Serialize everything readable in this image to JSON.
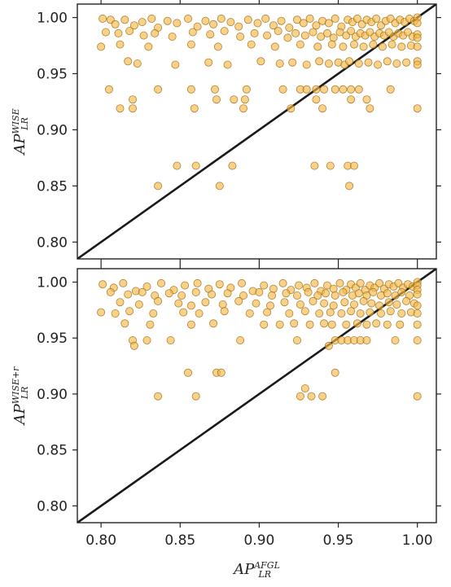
{
  "chart_data": [
    {
      "type": "scatter",
      "xlabel": {
        "base": "AP",
        "sup": "AFGL",
        "sub": "LR"
      },
      "ylabel": {
        "base": "AP",
        "sup": "WISE",
        "sub": "LR"
      },
      "xlim": [
        0.785,
        1.012
      ],
      "ylim": [
        0.785,
        1.012
      ],
      "xticks": [
        "0.80",
        "0.85",
        "0.90",
        "0.95",
        "1.00"
      ],
      "yticks": [
        "0.80",
        "0.85",
        "0.90",
        "0.95",
        "1.00"
      ],
      "reference_line": "y = x",
      "grid": false,
      "points": [
        [
          0.801,
          0.999
        ],
        [
          0.806,
          0.998
        ],
        [
          0.809,
          0.994
        ],
        [
          0.815,
          0.998
        ],
        [
          0.821,
          0.993
        ],
        [
          0.826,
          0.996
        ],
        [
          0.832,
          0.999
        ],
        [
          0.836,
          0.991
        ],
        [
          0.842,
          0.997
        ],
        [
          0.848,
          0.995
        ],
        [
          0.855,
          0.999
        ],
        [
          0.861,
          0.992
        ],
        [
          0.866,
          0.997
        ],
        [
          0.871,
          0.994
        ],
        [
          0.876,
          0.999
        ],
        [
          0.882,
          0.996
        ],
        [
          0.887,
          0.992
        ],
        [
          0.893,
          0.998
        ],
        [
          0.899,
          0.995
        ],
        [
          0.904,
          0.999
        ],
        [
          0.909,
          0.993
        ],
        [
          0.914,
          0.997
        ],
        [
          0.919,
          0.991
        ],
        [
          0.924,
          0.998
        ],
        [
          0.928,
          0.995
        ],
        [
          0.932,
          0.999
        ],
        [
          0.936,
          0.993
        ],
        [
          0.94,
          0.997
        ],
        [
          0.944,
          0.995
        ],
        [
          0.948,
          0.999
        ],
        [
          0.952,
          0.992
        ],
        [
          0.956,
          0.998
        ],
        [
          0.959,
          0.996
        ],
        [
          0.962,
          0.999
        ],
        [
          0.965,
          0.994
        ],
        [
          0.968,
          0.998
        ],
        [
          0.971,
          0.996
        ],
        [
          0.974,
          0.999
        ],
        [
          0.977,
          0.993
        ],
        [
          0.98,
          0.997
        ],
        [
          0.983,
          0.999
        ],
        [
          0.986,
          0.995
        ],
        [
          0.989,
          0.998
        ],
        [
          0.992,
          0.996
        ],
        [
          0.995,
          0.999
        ],
        [
          0.998,
          0.997
        ],
        [
          1.0,
          1.0
        ],
        [
          1.0,
          0.995
        ],
        [
          0.803,
          0.987
        ],
        [
          0.811,
          0.986
        ],
        [
          0.818,
          0.988
        ],
        [
          0.827,
          0.984
        ],
        [
          0.834,
          0.986
        ],
        [
          0.845,
          0.983
        ],
        [
          0.858,
          0.987
        ],
        [
          0.869,
          0.985
        ],
        [
          0.878,
          0.988
        ],
        [
          0.888,
          0.983
        ],
        [
          0.897,
          0.986
        ],
        [
          0.905,
          0.984
        ],
        [
          0.912,
          0.988
        ],
        [
          0.918,
          0.982
        ],
        [
          0.923,
          0.986
        ],
        [
          0.929,
          0.984
        ],
        [
          0.934,
          0.987
        ],
        [
          0.939,
          0.983
        ],
        [
          0.943,
          0.986
        ],
        [
          0.947,
          0.982
        ],
        [
          0.951,
          0.987
        ],
        [
          0.955,
          0.984
        ],
        [
          0.958,
          0.988
        ],
        [
          0.961,
          0.983
        ],
        [
          0.964,
          0.986
        ],
        [
          0.967,
          0.984
        ],
        [
          0.97,
          0.987
        ],
        [
          0.973,
          0.983
        ],
        [
          0.976,
          0.986
        ],
        [
          0.979,
          0.984
        ],
        [
          0.982,
          0.987
        ],
        [
          0.985,
          0.983
        ],
        [
          0.988,
          0.986
        ],
        [
          0.991,
          0.984
        ],
        [
          0.994,
          0.987
        ],
        [
          0.997,
          0.983
        ],
        [
          1.0,
          0.985
        ],
        [
          1.0,
          0.982
        ],
        [
          0.8,
          0.974
        ],
        [
          0.812,
          0.976
        ],
        [
          0.83,
          0.974
        ],
        [
          0.857,
          0.976
        ],
        [
          0.874,
          0.974
        ],
        [
          0.895,
          0.976
        ],
        [
          0.91,
          0.974
        ],
        [
          0.926,
          0.976
        ],
        [
          0.937,
          0.974
        ],
        [
          0.946,
          0.976
        ],
        [
          0.953,
          0.974
        ],
        [
          0.96,
          0.976
        ],
        [
          0.966,
          0.974
        ],
        [
          0.972,
          0.976
        ],
        [
          0.978,
          0.974
        ],
        [
          0.984,
          0.976
        ],
        [
          0.99,
          0.974
        ],
        [
          0.996,
          0.975
        ],
        [
          1.0,
          0.974
        ],
        [
          0.817,
          0.961
        ],
        [
          0.823,
          0.959
        ],
        [
          0.847,
          0.958
        ],
        [
          0.868,
          0.96
        ],
        [
          0.88,
          0.958
        ],
        [
          0.901,
          0.961
        ],
        [
          0.913,
          0.959
        ],
        [
          0.921,
          0.96
        ],
        [
          0.93,
          0.958
        ],
        [
          0.938,
          0.961
        ],
        [
          0.944,
          0.959
        ],
        [
          0.95,
          0.96
        ],
        [
          0.954,
          0.958
        ],
        [
          0.957,
          0.961
        ],
        [
          0.963,
          0.959
        ],
        [
          0.969,
          0.96
        ],
        [
          0.975,
          0.958
        ],
        [
          0.981,
          0.961
        ],
        [
          0.987,
          0.959
        ],
        [
          0.993,
          0.96
        ],
        [
          1.0,
          0.961
        ],
        [
          1.0,
          0.958
        ],
        [
          0.805,
          0.936
        ],
        [
          0.836,
          0.936
        ],
        [
          0.857,
          0.936
        ],
        [
          0.872,
          0.936
        ],
        [
          0.892,
          0.936
        ],
        [
          0.915,
          0.936
        ],
        [
          0.926,
          0.936
        ],
        [
          0.93,
          0.936
        ],
        [
          0.936,
          0.936
        ],
        [
          0.941,
          0.936
        ],
        [
          0.948,
          0.936
        ],
        [
          0.953,
          0.936
        ],
        [
          0.958,
          0.936
        ],
        [
          0.963,
          0.936
        ],
        [
          0.983,
          0.936
        ],
        [
          0.812,
          0.919
        ],
        [
          0.82,
          0.919
        ],
        [
          0.859,
          0.919
        ],
        [
          0.89,
          0.919
        ],
        [
          0.92,
          0.919
        ],
        [
          0.94,
          0.919
        ],
        [
          0.97,
          0.919
        ],
        [
          1.0,
          0.919
        ],
        [
          0.82,
          0.927
        ],
        [
          0.873,
          0.927
        ],
        [
          0.884,
          0.927
        ],
        [
          0.891,
          0.927
        ],
        [
          0.936,
          0.927
        ],
        [
          0.958,
          0.927
        ],
        [
          0.968,
          0.927
        ],
        [
          0.848,
          0.868
        ],
        [
          0.86,
          0.868
        ],
        [
          0.883,
          0.868
        ],
        [
          0.935,
          0.868
        ],
        [
          0.945,
          0.868
        ],
        [
          0.956,
          0.868
        ],
        [
          0.96,
          0.868
        ],
        [
          0.836,
          0.85
        ],
        [
          0.875,
          0.85
        ],
        [
          0.957,
          0.85
        ]
      ]
    },
    {
      "type": "scatter",
      "xlabel": {
        "base": "AP",
        "sup": "AFGL",
        "sub": "LR"
      },
      "ylabel": {
        "base": "AP",
        "sup": "WISE+r",
        "sub": "LR"
      },
      "xlim": [
        0.785,
        1.012
      ],
      "ylim": [
        0.785,
        1.012
      ],
      "xticks": [
        "0.80",
        "0.85",
        "0.90",
        "0.95",
        "1.00"
      ],
      "yticks": [
        "0.80",
        "0.85",
        "0.90",
        "0.95",
        "1.00"
      ],
      "reference_line": "y = x",
      "grid": false,
      "points": [
        [
          0.801,
          0.998
        ],
        [
          0.808,
          0.995
        ],
        [
          0.814,
          0.999
        ],
        [
          0.822,
          0.992
        ],
        [
          0.829,
          0.996
        ],
        [
          0.838,
          0.999
        ],
        [
          0.846,
          0.993
        ],
        [
          0.853,
          0.997
        ],
        [
          0.861,
          0.999
        ],
        [
          0.868,
          0.994
        ],
        [
          0.875,
          0.998
        ],
        [
          0.882,
          0.995
        ],
        [
          0.889,
          0.999
        ],
        [
          0.896,
          0.992
        ],
        [
          0.903,
          0.997
        ],
        [
          0.909,
          0.994
        ],
        [
          0.915,
          0.999
        ],
        [
          0.92,
          0.993
        ],
        [
          0.925,
          0.997
        ],
        [
          0.93,
          0.995
        ],
        [
          0.935,
          0.999
        ],
        [
          0.939,
          0.992
        ],
        [
          0.943,
          0.997
        ],
        [
          0.947,
          0.994
        ],
        [
          0.951,
          0.999
        ],
        [
          0.955,
          0.993
        ],
        [
          0.958,
          0.998
        ],
        [
          0.961,
          0.995
        ],
        [
          0.964,
          0.999
        ],
        [
          0.967,
          0.993
        ],
        [
          0.97,
          0.997
        ],
        [
          0.973,
          0.995
        ],
        [
          0.976,
          0.999
        ],
        [
          0.979,
          0.994
        ],
        [
          0.982,
          0.998
        ],
        [
          0.985,
          0.996
        ],
        [
          0.988,
          0.999
        ],
        [
          0.991,
          0.995
        ],
        [
          0.994,
          0.998
        ],
        [
          0.997,
          0.996
        ],
        [
          1.0,
          1.0
        ],
        [
          1.0,
          0.997
        ],
        [
          1.0,
          0.993
        ],
        [
          0.806,
          0.991
        ],
        [
          0.817,
          0.989
        ],
        [
          0.826,
          0.991
        ],
        [
          0.834,
          0.988
        ],
        [
          0.843,
          0.99
        ],
        [
          0.851,
          0.988
        ],
        [
          0.86,
          0.991
        ],
        [
          0.87,
          0.989
        ],
        [
          0.88,
          0.99
        ],
        [
          0.89,
          0.988
        ],
        [
          0.9,
          0.991
        ],
        [
          0.908,
          0.988
        ],
        [
          0.917,
          0.99
        ],
        [
          0.924,
          0.988
        ],
        [
          0.931,
          0.991
        ],
        [
          0.937,
          0.988
        ],
        [
          0.942,
          0.99
        ],
        [
          0.948,
          0.988
        ],
        [
          0.953,
          0.991
        ],
        [
          0.959,
          0.988
        ],
        [
          0.963,
          0.99
        ],
        [
          0.968,
          0.988
        ],
        [
          0.972,
          0.991
        ],
        [
          0.977,
          0.988
        ],
        [
          0.981,
          0.99
        ],
        [
          0.986,
          0.988
        ],
        [
          0.99,
          0.991
        ],
        [
          0.995,
          0.988
        ],
        [
          1.0,
          0.989
        ],
        [
          0.812,
          0.982
        ],
        [
          0.824,
          0.98
        ],
        [
          0.836,
          0.983
        ],
        [
          0.849,
          0.981
        ],
        [
          0.857,
          0.979
        ],
        [
          0.866,
          0.982
        ],
        [
          0.877,
          0.98
        ],
        [
          0.887,
          0.983
        ],
        [
          0.898,
          0.981
        ],
        [
          0.907,
          0.979
        ],
        [
          0.916,
          0.982
        ],
        [
          0.926,
          0.98
        ],
        [
          0.934,
          0.983
        ],
        [
          0.941,
          0.981
        ],
        [
          0.947,
          0.979
        ],
        [
          0.954,
          0.982
        ],
        [
          0.96,
          0.98
        ],
        [
          0.966,
          0.983
        ],
        [
          0.971,
          0.981
        ],
        [
          0.976,
          0.979
        ],
        [
          0.982,
          0.982
        ],
        [
          0.987,
          0.98
        ],
        [
          0.993,
          0.983
        ],
        [
          0.998,
          0.981
        ],
        [
          1.0,
          0.979
        ],
        [
          0.8,
          0.973
        ],
        [
          0.809,
          0.972
        ],
        [
          0.818,
          0.974
        ],
        [
          0.833,
          0.972
        ],
        [
          0.852,
          0.973
        ],
        [
          0.862,
          0.972
        ],
        [
          0.878,
          0.974
        ],
        [
          0.894,
          0.972
        ],
        [
          0.905,
          0.973
        ],
        [
          0.919,
          0.972
        ],
        [
          0.929,
          0.974
        ],
        [
          0.938,
          0.972
        ],
        [
          0.945,
          0.973
        ],
        [
          0.952,
          0.972
        ],
        [
          0.958,
          0.974
        ],
        [
          0.964,
          0.972
        ],
        [
          0.97,
          0.973
        ],
        [
          0.977,
          0.972
        ],
        [
          0.983,
          0.974
        ],
        [
          0.99,
          0.972
        ],
        [
          0.996,
          0.973
        ],
        [
          1.0,
          0.972
        ],
        [
          0.815,
          0.963
        ],
        [
          0.831,
          0.962
        ],
        [
          0.857,
          0.962
        ],
        [
          0.871,
          0.963
        ],
        [
          0.903,
          0.962
        ],
        [
          0.913,
          0.962
        ],
        [
          0.922,
          0.963
        ],
        [
          0.932,
          0.962
        ],
        [
          0.941,
          0.963
        ],
        [
          0.946,
          0.962
        ],
        [
          0.955,
          0.962
        ],
        [
          0.962,
          0.963
        ],
        [
          0.968,
          0.962
        ],
        [
          0.974,
          0.963
        ],
        [
          0.981,
          0.962
        ],
        [
          0.989,
          0.962
        ],
        [
          1.0,
          0.962
        ],
        [
          0.82,
          0.948
        ],
        [
          0.829,
          0.948
        ],
        [
          0.844,
          0.948
        ],
        [
          0.888,
          0.948
        ],
        [
          0.924,
          0.948
        ],
        [
          0.948,
          0.948
        ],
        [
          0.952,
          0.948
        ],
        [
          0.956,
          0.948
        ],
        [
          0.96,
          0.948
        ],
        [
          0.964,
          0.948
        ],
        [
          0.968,
          0.948
        ],
        [
          0.986,
          0.948
        ],
        [
          1.0,
          0.948
        ],
        [
          0.821,
          0.943
        ],
        [
          0.944,
          0.943
        ],
        [
          0.855,
          0.919
        ],
        [
          0.873,
          0.919
        ],
        [
          0.876,
          0.919
        ],
        [
          0.948,
          0.919
        ],
        [
          0.929,
          0.905
        ],
        [
          0.836,
          0.898
        ],
        [
          0.86,
          0.898
        ],
        [
          0.926,
          0.898
        ],
        [
          0.933,
          0.898
        ],
        [
          0.94,
          0.898
        ],
        [
          1.0,
          0.898
        ]
      ]
    }
  ]
}
